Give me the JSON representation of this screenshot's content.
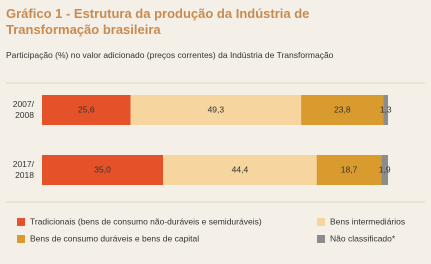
{
  "chart_data": {
    "type": "stacked-bar-horizontal",
    "title": "Gráfico 1 - Estrutura da produção da Indústria de Transformação brasileira",
    "subtitle": "Participação (%) no valor adicionado (preços correntes) da Indústria de Transformação",
    "categories": [
      "2007/\n2008",
      "2017/\n2018"
    ],
    "xlim": [
      0,
      100
    ],
    "series": [
      {
        "name": "Tradicionais (bens de consumo não-duráveis e semiduráveis)",
        "color": "#e5522a",
        "values": [
          25.6,
          35.0
        ],
        "value_labels": [
          "25,6",
          "35,0"
        ]
      },
      {
        "name": "Bens intermediários",
        "color": "#f6d59f",
        "values": [
          49.3,
          44.4
        ],
        "value_labels": [
          "49,3",
          "44,4"
        ]
      },
      {
        "name": "Bens de consumo duráveis e bens de capital",
        "color": "#d99b2e",
        "values": [
          23.8,
          18.7
        ],
        "value_labels": [
          "23,8",
          "18,7"
        ]
      },
      {
        "name": "Não classificado*",
        "color": "#8c8c8c",
        "values": [
          1.3,
          1.9
        ],
        "value_labels": [
          "1,3",
          "1,9"
        ]
      }
    ]
  }
}
